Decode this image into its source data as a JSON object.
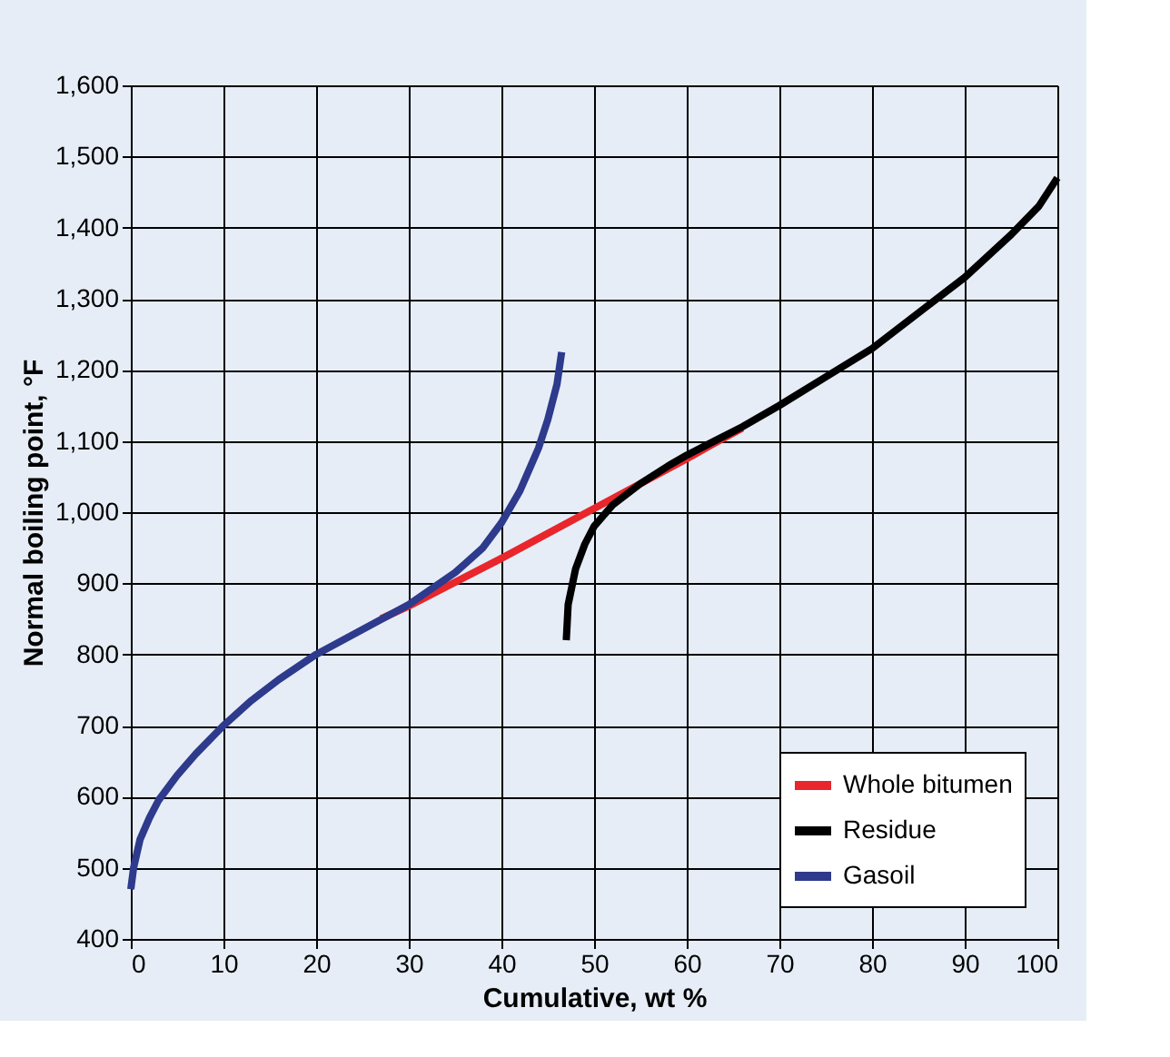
{
  "chart_data": {
    "type": "line",
    "xlabel": "Cumulative, wt %",
    "ylabel": "Normal boiling point, °F",
    "xlim": [
      0,
      100
    ],
    "xticks": [
      0,
      10,
      20,
      30,
      40,
      50,
      60,
      70,
      80,
      90,
      100
    ],
    "ylim": [
      400,
      1600
    ],
    "yticks": [
      400,
      500,
      600,
      700,
      800,
      900,
      {
        "value": 1000,
        "label": "1,000"
      },
      {
        "value": 1100,
        "label": "1,100"
      },
      {
        "value": 1200,
        "label": "1,200"
      },
      {
        "value": 1300,
        "label": "1,300"
      },
      {
        "value": 1400,
        "label": "1,400"
      },
      {
        "value": 1500,
        "label": "1,500"
      },
      {
        "value": 1600,
        "label": "1,600"
      }
    ],
    "grid": true,
    "legend": "bottom right",
    "line_style": "solid",
    "marker": "none",
    "series": [
      {
        "name": "Whole bitumen",
        "color": "#e8262b",
        "x": [
          27,
          30,
          40,
          50,
          60,
          63,
          66
        ],
        "values": [
          850,
          868,
          935,
          1005,
          1075,
          1097,
          1118
        ]
      },
      {
        "name": "Residue",
        "color": "#000000",
        "x": [
          47,
          47.2,
          48,
          49,
          50,
          52,
          55,
          58,
          60,
          63,
          66,
          70,
          75,
          80,
          85,
          90,
          95,
          98,
          100
        ],
        "values": [
          820,
          870,
          920,
          955,
          980,
          1010,
          1040,
          1065,
          1080,
          1100,
          1120,
          1150,
          1190,
          1230,
          1280,
          1330,
          1390,
          1430,
          1470
        ]
      },
      {
        "name": "Gasoil",
        "color": "#2e3a8c",
        "x": [
          0,
          0.3,
          1,
          2,
          3,
          5,
          7,
          10,
          13,
          16,
          20,
          25,
          30,
          35,
          38,
          40,
          42,
          44,
          45,
          46,
          46.5
        ],
        "values": [
          470,
          500,
          540,
          570,
          595,
          630,
          660,
          700,
          735,
          765,
          800,
          835,
          870,
          915,
          950,
          985,
          1030,
          1090,
          1130,
          1180,
          1225
        ]
      }
    ]
  }
}
